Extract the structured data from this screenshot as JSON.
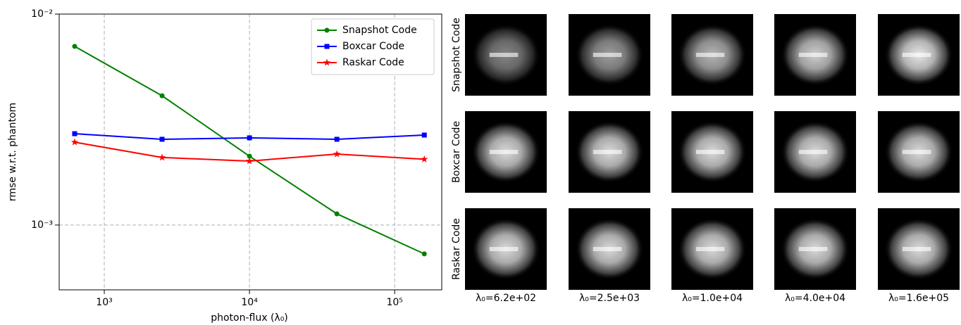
{
  "chart_data": {
    "type": "line",
    "xlabel": "photon-flux (λ₀)",
    "ylabel": "rmse w.r.t. phantom",
    "xscale": "log",
    "yscale": "log",
    "x": [
      625,
      2500,
      10000,
      40000,
      160000
    ],
    "xlim": [
      489,
      211000
    ],
    "ylim": [
      0.000493,
      0.01
    ],
    "xticks": [
      {
        "value": 1000,
        "label": "10³"
      },
      {
        "value": 10000,
        "label": "10⁴"
      },
      {
        "value": 100000,
        "label": "10⁵"
      }
    ],
    "yticks": [
      {
        "value": 0.001,
        "label": "10⁻³"
      },
      {
        "value": 0.01,
        "label": "10⁻²"
      }
    ],
    "grid": true,
    "legend": "upper right",
    "series": [
      {
        "name": "Snapshot Code",
        "color": "#008000",
        "marker": "circle",
        "values": [
          0.00703,
          0.0041,
          0.00212,
          0.00113,
          0.00073
        ]
      },
      {
        "name": "Boxcar Code",
        "color": "#0000ff",
        "marker": "square",
        "values": [
          0.00271,
          0.00255,
          0.00259,
          0.00255,
          0.00267
        ]
      },
      {
        "name": "Raskar Code",
        "color": "#ff0000",
        "marker": "star",
        "values": [
          0.00247,
          0.00209,
          0.00201,
          0.00217,
          0.00205
        ]
      }
    ]
  },
  "image_grid": {
    "row_labels": [
      "Snapshot Code",
      "Boxcar Code",
      "Raskar Code"
    ],
    "column_labels": [
      "λ₀=6.2e+02",
      "λ₀=2.5e+03",
      "λ₀=1.0e+04",
      "λ₀=4.0e+04",
      "λ₀=1.6e+05"
    ]
  }
}
